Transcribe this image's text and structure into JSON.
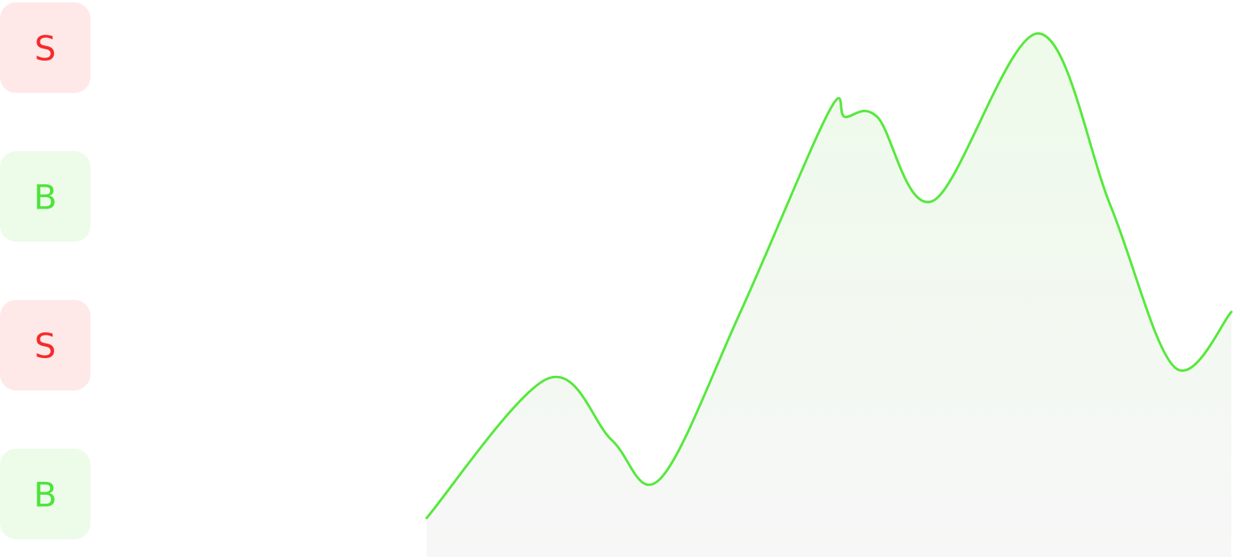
{
  "badges": [
    {
      "label": "S",
      "color": "#f52a2a",
      "background": "#ffe8e8"
    },
    {
      "label": "B",
      "color": "#4ee33d",
      "background": "#edfbe9"
    },
    {
      "label": "S",
      "color": "#f52a2a",
      "background": "#ffe8e8"
    },
    {
      "label": "B",
      "color": "#4ee33d",
      "background": "#edfbe9"
    }
  ],
  "chart_data": {
    "type": "line",
    "x": [
      0,
      15,
      23,
      29,
      39,
      50,
      52,
      56,
      63,
      76,
      85,
      93,
      100
    ],
    "series": [
      {
        "color": "#56e83d",
        "values": [
          7,
          32,
          21,
          14,
          44,
          80,
          79,
          79,
          64,
          94,
          63,
          34,
          44
        ]
      }
    ],
    "xlim": [
      0,
      100
    ],
    "ylim": [
      0,
      100
    ]
  }
}
